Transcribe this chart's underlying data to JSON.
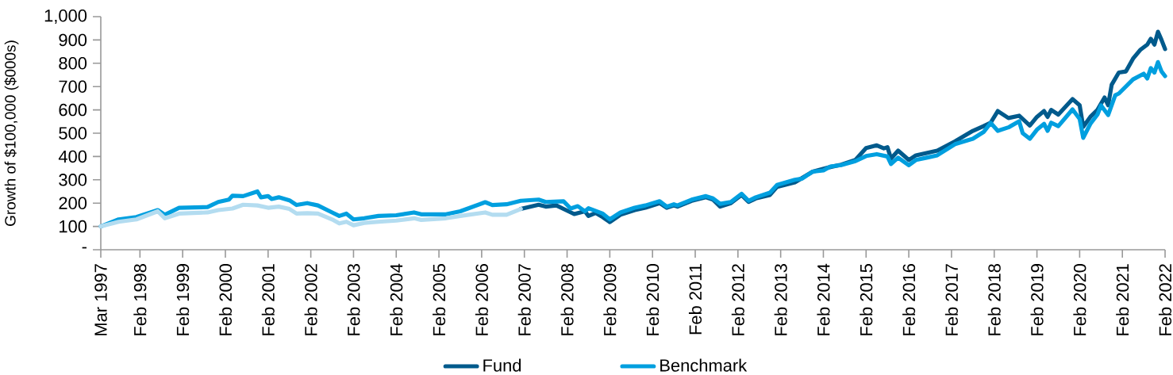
{
  "chart_data": {
    "type": "line",
    "ylabel": "Growth of $100,000 ($000s)",
    "legend": "bottom",
    "xlim": [
      "1997-03",
      "2022-02"
    ],
    "xticks": [
      {
        "value": "1997-03",
        "label": "Mar 1997"
      },
      {
        "value": "1998-02",
        "label": "Feb 1998"
      },
      {
        "value": "1999-02",
        "label": "Feb 1999"
      },
      {
        "value": "2000-02",
        "label": "Feb 2000"
      },
      {
        "value": "2001-02",
        "label": "Feb 2001"
      },
      {
        "value": "2002-02",
        "label": "Feb 2002"
      },
      {
        "value": "2003-02",
        "label": "Feb 2003"
      },
      {
        "value": "2004-02",
        "label": "Feb 2004"
      },
      {
        "value": "2005-02",
        "label": "Feb 2005"
      },
      {
        "value": "2006-02",
        "label": "Feb 2006"
      },
      {
        "value": "2007-02",
        "label": "Feb 2007"
      },
      {
        "value": "2008-02",
        "label": "Feb 2008"
      },
      {
        "value": "2009-02",
        "label": "Feb 2009"
      },
      {
        "value": "2010-02",
        "label": "Feb 2010"
      },
      {
        "value": "2011-02",
        "label": "Feb 2011"
      },
      {
        "value": "2012-02",
        "label": "Feb 2012"
      },
      {
        "value": "2013-02",
        "label": "Feb 2013"
      },
      {
        "value": "2014-02",
        "label": "Feb 2014"
      },
      {
        "value": "2015-02",
        "label": "Feb 2015"
      },
      {
        "value": "2016-02",
        "label": "Feb 2016"
      },
      {
        "value": "2017-02",
        "label": "Feb 2017"
      },
      {
        "value": "2018-02",
        "label": "Feb 2018"
      },
      {
        "value": "2019-02",
        "label": "Feb 2019"
      },
      {
        "value": "2020-02",
        "label": "Feb 2020"
      },
      {
        "value": "2021-02",
        "label": "Feb 2021"
      },
      {
        "value": "2022-02",
        "label": "Feb 2022"
      }
    ],
    "ylim": [
      0,
      1000
    ],
    "yticks": [
      {
        "value": 0,
        "label": "-"
      },
      100,
      200,
      300,
      400,
      500,
      600,
      700,
      800,
      900,
      {
        "value": 1000,
        "label": "1,000"
      }
    ],
    "series": [
      {
        "name": "Fund",
        "color": "#005a8c",
        "x": [
          "2007-01",
          "2007-06",
          "2007-08",
          "2007-11",
          "2008-01",
          "2008-04",
          "2008-07",
          "2008-08",
          "2008-10",
          "2008-12",
          "2009-02",
          "2009-05",
          "2009-09",
          "2009-12",
          "2010-04",
          "2010-06",
          "2010-08",
          "2010-09",
          "2011-01",
          "2011-05",
          "2011-07",
          "2011-09",
          "2011-12",
          "2012-03",
          "2012-05",
          "2012-07",
          "2012-11",
          "2013-01",
          "2013-06",
          "2013-11",
          "2014-04",
          "2014-07",
          "2014-11",
          "2015-02",
          "2015-05",
          "2015-07",
          "2015-08",
          "2015-09",
          "2015-11",
          "2016-02",
          "2016-04",
          "2016-07",
          "2016-10",
          "2017-03",
          "2017-08",
          "2017-11",
          "2018-01",
          "2018-03",
          "2018-06",
          "2018-09",
          "2018-10",
          "2018-12",
          "2019-02",
          "2019-04",
          "2019-05",
          "2019-06",
          "2019-08",
          "2019-12",
          "2020-02",
          "2020-03",
          "2020-05",
          "2020-07",
          "2020-09",
          "2020-10",
          "2020-11",
          "2021-01",
          "2021-03",
          "2021-05",
          "2021-07",
          "2021-09",
          "2021-10",
          "2021-11",
          "2021-12",
          "2022-01",
          "2022-02"
        ],
        "values": [
          175,
          193,
          185,
          190,
          175,
          153,
          165,
          145,
          158,
          140,
          119,
          150,
          170,
          180,
          200,
          180,
          190,
          185,
          210,
          225,
          215,
          185,
          200,
          235,
          205,
          220,
          235,
          270,
          289,
          335,
          355,
          365,
          385,
          436,
          448,
          435,
          440,
          391,
          425,
          385,
          405,
          415,
          425,
          465,
          510,
          530,
          545,
          595,
          565,
          575,
          561,
          533,
          570,
          595,
          570,
          600,
          580,
          646,
          620,
          527,
          570,
          600,
          653,
          620,
          708,
          760,
          765,
          820,
          857,
          880,
          905,
          880,
          935,
          900,
          861
        ]
      },
      {
        "name": "Benchmark",
        "color": "#009fdf",
        "x": [
          "1997-03",
          "1997-08",
          "1998-01",
          "1998-07",
          "1998-09",
          "1999-01",
          "1999-09",
          "1999-12",
          "2000-03",
          "2000-04",
          "2000-07",
          "2000-11",
          "2000-12",
          "2001-02",
          "2001-03",
          "2001-05",
          "2001-08",
          "2001-10",
          "2002-01",
          "2002-04",
          "2002-08",
          "2002-10",
          "2002-12",
          "2003-02",
          "2003-05",
          "2003-09",
          "2004-02",
          "2004-07",
          "2004-09",
          "2005-04",
          "2005-08",
          "2006-03",
          "2006-05",
          "2006-09",
          "2007-01",
          "2007-06",
          "2007-08",
          "2008-01",
          "2008-03",
          "2008-05",
          "2008-07",
          "2008-08",
          "2008-12",
          "2009-02",
          "2009-05",
          "2009-09",
          "2009-12",
          "2010-04",
          "2010-06",
          "2010-08",
          "2010-09",
          "2011-01",
          "2011-05",
          "2011-07",
          "2011-09",
          "2011-12",
          "2012-03",
          "2012-05",
          "2012-07",
          "2012-11",
          "2013-01",
          "2013-06",
          "2013-08",
          "2013-11",
          "2014-02",
          "2014-04",
          "2014-07",
          "2014-11",
          "2015-02",
          "2015-05",
          "2015-08",
          "2015-09",
          "2015-11",
          "2016-02",
          "2016-04",
          "2016-07",
          "2016-10",
          "2017-03",
          "2017-08",
          "2017-11",
          "2018-01",
          "2018-03",
          "2018-06",
          "2018-09",
          "2018-10",
          "2018-12",
          "2019-02",
          "2019-04",
          "2019-05",
          "2019-06",
          "2019-08",
          "2019-12",
          "2020-02",
          "2020-03",
          "2020-05",
          "2020-07",
          "2020-08",
          "2020-10",
          "2020-12",
          "2021-01",
          "2021-05",
          "2021-08",
          "2021-09",
          "2021-10",
          "2021-11",
          "2021-12",
          "2022-01",
          "2022-02"
        ],
        "values": [
          100,
          130,
          140,
          170,
          150,
          180,
          183,
          205,
          215,
          232,
          230,
          250,
          225,
          230,
          218,
          225,
          212,
          192,
          200,
          190,
          160,
          145,
          155,
          130,
          135,
          145,
          148,
          160,
          152,
          152,
          165,
          204,
          192,
          195,
          210,
          215,
          205,
          208,
          177,
          187,
          165,
          178,
          155,
          130,
          160,
          180,
          190,
          208,
          185,
          195,
          190,
          215,
          230,
          220,
          197,
          205,
          240,
          210,
          225,
          245,
          278,
          300,
          305,
          335,
          340,
          357,
          363,
          380,
          402,
          410,
          400,
          368,
          395,
          363,
          385,
          395,
          405,
          453,
          476,
          505,
          544,
          510,
          525,
          551,
          500,
          476,
          515,
          540,
          510,
          545,
          530,
          602,
          561,
          480,
          540,
          580,
          619,
          578,
          663,
          670,
          731,
          755,
          735,
          779,
          760,
          805,
          765,
          745
        ]
      },
      {
        "color": "#b3dcf0",
        "x": [
          "1997-03",
          "1997-08",
          "1998-01",
          "1998-07",
          "1998-09",
          "1999-01",
          "1999-09",
          "1999-12",
          "2000-04",
          "2000-07",
          "2000-11",
          "2001-02",
          "2001-05",
          "2001-08",
          "2001-10",
          "2002-01",
          "2002-04",
          "2002-08",
          "2002-10",
          "2002-12",
          "2003-02",
          "2003-05",
          "2003-09",
          "2004-02",
          "2004-07",
          "2004-09",
          "2005-04",
          "2005-08",
          "2006-03",
          "2006-05",
          "2006-09",
          "2007-01"
        ],
        "values": [
          100,
          120,
          130,
          165,
          135,
          155,
          160,
          170,
          177,
          193,
          190,
          180,
          185,
          175,
          155,
          157,
          155,
          130,
          113,
          120,
          105,
          115,
          120,
          125,
          135,
          128,
          135,
          145,
          160,
          150,
          150,
          175
        ]
      }
    ]
  }
}
